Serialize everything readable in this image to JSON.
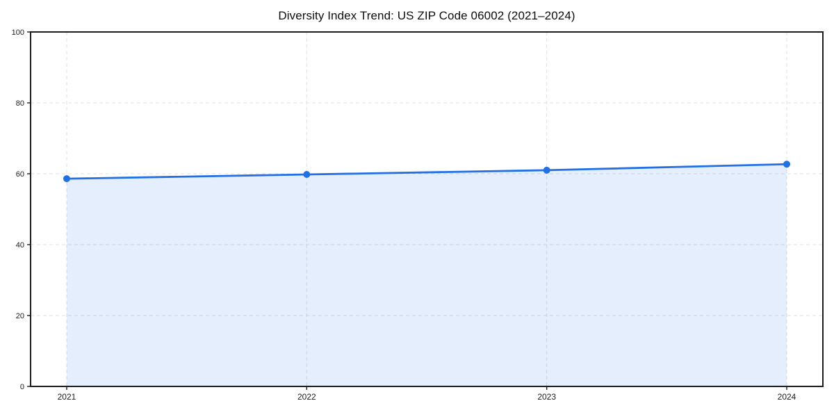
{
  "chart_data": {
    "type": "area",
    "title": "Diversity Index Trend: US ZIP Code 06002 (2021–2024)",
    "categories": [
      "2021",
      "2022",
      "2023",
      "2024"
    ],
    "series": [
      {
        "name": "Diversity Index",
        "values": [
          58.6,
          59.8,
          61.0,
          62.7
        ]
      }
    ],
    "xlabel": "",
    "ylabel": "",
    "ylim": [
      0,
      100
    ],
    "yticks": [
      0,
      20,
      40,
      60,
      80,
      100
    ],
    "grid": "dashed, horizontal and vertical",
    "legend": "none",
    "marker": "circle",
    "colors": {
      "line": "#2270e3",
      "marker": "#2270e3",
      "fill": "rgba(34, 112, 227, 0.12)",
      "grid": "#e0e0e0",
      "spine": "#1c1c1c",
      "tick_text": "#1a1a1a",
      "background": "#ffffff"
    }
  }
}
